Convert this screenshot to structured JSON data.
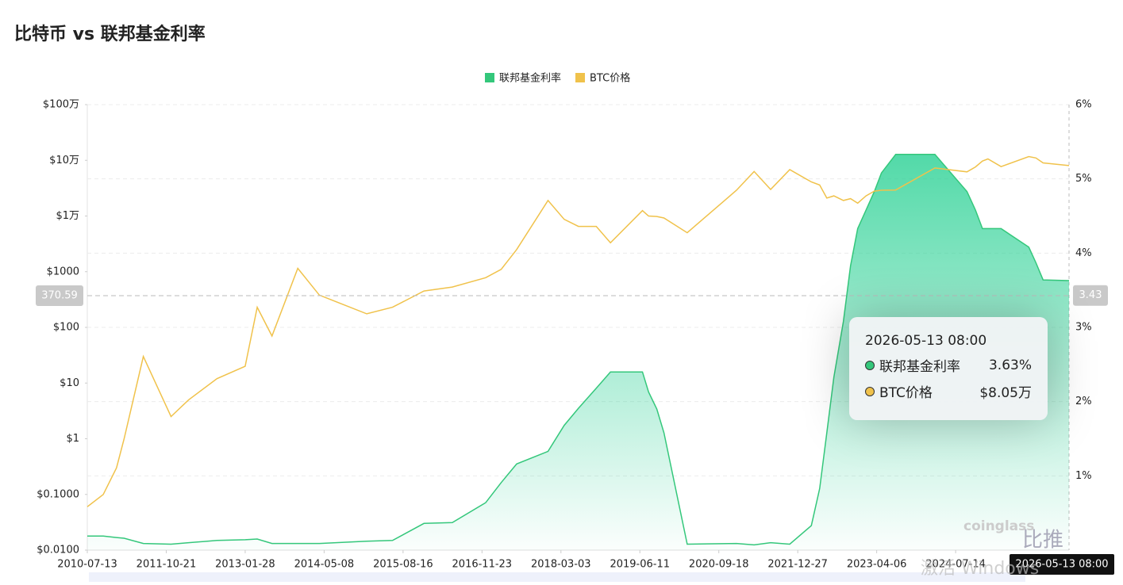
{
  "chart_data": {
    "type": "line",
    "title": "比特币 vs 联邦基金利率",
    "log_y": true,
    "grid": "y2",
    "legend": "top",
    "x": [
      "2010-07-13",
      "2010-10-15",
      "2011-01-01",
      "2011-02-15",
      "2011-06-08",
      "2011-11-18",
      "2012-03-01",
      "2012-08-15",
      "2013-01-28",
      "2013-04-09",
      "2013-07-05",
      "2013-12-04",
      "2014-04-10",
      "2015-01-14",
      "2015-06-15",
      "2015-12-17",
      "2016-06-01",
      "2016-12-15",
      "2017-03-16",
      "2017-06-15",
      "2017-12-17",
      "2018-03-22",
      "2018-06-14",
      "2018-09-27",
      "2018-12-20",
      "2019-06-26",
      "2019-08-01",
      "2019-09-19",
      "2019-10-31",
      "2020-03-16",
      "2020-12-31",
      "2021-04-14",
      "2021-07-20",
      "2021-11-10",
      "2022-03-17",
      "2022-05-05",
      "2022-06-16",
      "2022-07-28",
      "2022-09-22",
      "2022-11-03",
      "2022-12-15",
      "2023-02-02",
      "2023-03-23",
      "2023-05-04",
      "2023-07-27",
      "2024-03-14",
      "2024-09-19",
      "2024-11-08",
      "2024-12-19",
      "2025-01-20",
      "2025-04-08",
      "2025-09-18",
      "2025-10-30",
      "2025-12-11",
      "2026-05-13"
    ],
    "series": [
      {
        "name": "联邦基金利率",
        "color": "#34c77b",
        "axis": "y2",
        "values": [
          0.19,
          0.19,
          0.17,
          0.16,
          0.09,
          0.08,
          0.1,
          0.13,
          0.14,
          0.15,
          0.09,
          0.09,
          0.09,
          0.12,
          0.13,
          0.36,
          0.37,
          0.64,
          0.91,
          1.16,
          1.33,
          1.68,
          1.91,
          2.18,
          2.4,
          2.4,
          2.13,
          1.9,
          1.58,
          0.08,
          0.09,
          0.07,
          0.1,
          0.08,
          0.33,
          0.83,
          1.58,
          2.33,
          3.08,
          3.83,
          4.33,
          4.58,
          4.83,
          5.08,
          5.33,
          5.33,
          4.83,
          4.58,
          4.33,
          4.33,
          4.33,
          4.08,
          3.87,
          3.64,
          3.63
        ]
      },
      {
        "name": "BTC价格",
        "color": "#f0c24b",
        "axis": "y",
        "values": [
          0.06,
          0.1,
          0.3,
          1,
          30,
          2.5,
          5,
          12,
          20,
          230,
          70,
          1150,
          380,
          175,
          230,
          450,
          530,
          780,
          1100,
          2500,
          19000,
          8700,
          6500,
          6500,
          3300,
          12500,
          10000,
          9800,
          9200,
          5000,
          29000,
          63000,
          30000,
          68000,
          41000,
          36000,
          21000,
          23000,
          19000,
          20500,
          17000,
          23000,
          28000,
          29000,
          29300,
          73000,
          62000,
          76000,
          97000,
          106000,
          77000,
          117000,
          110000,
          90000,
          80500
        ]
      }
    ],
    "xlim": [
      "2010-07-13",
      "2026-05-13"
    ],
    "xticks": [
      "2010-07-13",
      "2011-10-21",
      "2013-01-28",
      "2014-05-08",
      "2015-08-16",
      "2016-11-23",
      "2018-03-03",
      "2019-06-11",
      "2020-09-18",
      "2021-12-27",
      "2023-04-06",
      "2024-07-14"
    ],
    "ylim": [
      0.01,
      1000000
    ],
    "yticks": [
      {
        "value": 0.01,
        "label": "$0.0100"
      },
      {
        "value": 0.1,
        "label": "$0.1000"
      },
      {
        "value": 1,
        "label": "$1"
      },
      {
        "value": 10,
        "label": "$10"
      },
      {
        "value": 100,
        "label": "$100"
      },
      {
        "value": 1000,
        "label": "$1000"
      },
      {
        "value": 10000,
        "label": "$1万"
      },
      {
        "value": 100000,
        "label": "$10万"
      },
      {
        "value": 1000000,
        "label": "$100万"
      }
    ],
    "y2lim": [
      0,
      6
    ],
    "y2ticks": [
      {
        "value": 1,
        "label": "1%"
      },
      {
        "value": 2,
        "label": "2%"
      },
      {
        "value": 3,
        "label": "3%"
      },
      {
        "value": 4,
        "label": "4%"
      },
      {
        "value": 5,
        "label": "5%"
      },
      {
        "value": 6,
        "label": "6%"
      }
    ],
    "crosshair": {
      "y": 370.59,
      "y2": 3.43,
      "x_label": "2026-05-13 08:00"
    },
    "tooltip": {
      "title": "2026-05-13 08:00",
      "items": [
        {
          "name": "联邦基金利率",
          "value": 3.63,
          "label": "3.63%"
        },
        {
          "name": "BTC价格",
          "value": 80500,
          "label": "$8.05万"
        }
      ]
    },
    "watermarks": [
      "coinglass",
      "比推",
      "激活 Windows"
    ]
  }
}
